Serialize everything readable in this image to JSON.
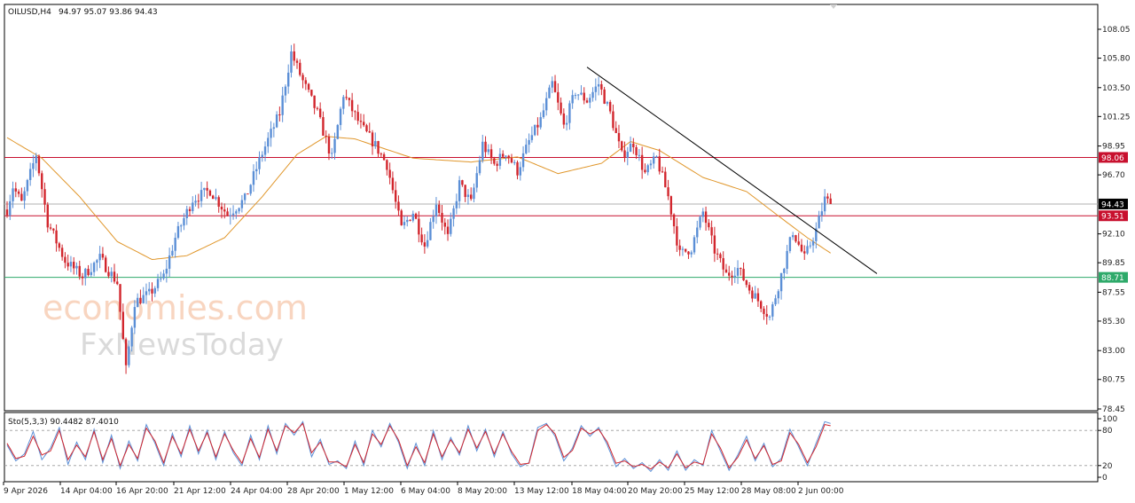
{
  "header": {
    "symbol": "OILUSD,H4",
    "ohlc": "94.97 95.07 93.86 94.43"
  },
  "watermark": {
    "line1": "economies.com",
    "line2": "FxNewsToday"
  },
  "colors": {
    "bull": "#5b8fd6",
    "bear": "#d2262d",
    "ma": "#e0962a",
    "resistance": "#c8102e",
    "support": "#2eaa6a",
    "current": "#b0b0b0",
    "stoch_main": "#5b8fd6",
    "stoch_signal": "#d2262d"
  },
  "chart_data": [
    {
      "type": "candlestick",
      "symbol": "OILUSD",
      "timeframe": "H4",
      "y_ticks": [
        "108.05",
        "105.80",
        "103.50",
        "101.25",
        "98.95",
        "96.70",
        "92.10",
        "89.85",
        "87.55",
        "85.30",
        "83.00",
        "80.75",
        "78.45"
      ],
      "ylim": [
        78.45,
        109.0
      ],
      "x_ticks": [
        "9 Apr 2026",
        "14 Apr 04:00",
        "16 Apr 20:00",
        "21 Apr 12:00",
        "24 Apr 04:00",
        "28 Apr 20:00",
        "1 May 12:00",
        "6 May 04:00",
        "8 May 20:00",
        "13 May 12:00",
        "18 May 04:00",
        "20 May 20:00",
        "25 May 12:00",
        "28 May 08:00",
        "2 Jun 00:00"
      ],
      "anchors": [
        [
          0,
          94.0
        ],
        [
          2,
          95.8
        ],
        [
          5,
          94.5
        ],
        [
          10,
          98.3
        ],
        [
          14,
          93.0
        ],
        [
          20,
          90.0
        ],
        [
          26,
          88.8
        ],
        [
          32,
          90.2
        ],
        [
          38,
          88.3
        ],
        [
          41,
          81.5
        ],
        [
          44,
          86.8
        ],
        [
          49,
          87.4
        ],
        [
          54,
          88.8
        ],
        [
          58,
          91.8
        ],
        [
          64,
          94.8
        ],
        [
          70,
          95.5
        ],
        [
          76,
          93.6
        ],
        [
          82,
          94.8
        ],
        [
          88,
          98.4
        ],
        [
          94,
          101.5
        ],
        [
          98,
          106.2
        ],
        [
          102,
          104.0
        ],
        [
          107,
          101.5
        ],
        [
          112,
          98.0
        ],
        [
          116,
          103.0
        ],
        [
          122,
          100.5
        ],
        [
          127,
          99.0
        ],
        [
          131,
          97.5
        ],
        [
          136,
          92.5
        ],
        [
          140,
          93.8
        ],
        [
          144,
          91.2
        ],
        [
          148,
          94.6
        ],
        [
          152,
          91.8
        ],
        [
          156,
          96.0
        ],
        [
          160,
          94.5
        ],
        [
          164,
          99.1
        ],
        [
          168,
          97.5
        ],
        [
          172,
          98.5
        ],
        [
          176,
          97.0
        ],
        [
          180,
          99.3
        ],
        [
          184,
          101.0
        ],
        [
          188,
          103.8
        ],
        [
          192,
          100.5
        ],
        [
          196,
          103.2
        ],
        [
          200,
          102.5
        ],
        [
          204,
          103.8
        ],
        [
          208,
          101.5
        ],
        [
          212,
          98.2
        ],
        [
          216,
          99.2
        ],
        [
          220,
          96.8
        ],
        [
          224,
          98.0
        ],
        [
          228,
          95.0
        ],
        [
          232,
          90.5
        ],
        [
          236,
          91.0
        ],
        [
          240,
          93.8
        ],
        [
          244,
          90.8
        ],
        [
          248,
          88.9
        ],
        [
          252,
          89.4
        ],
        [
          256,
          87.8
        ],
        [
          260,
          86.6
        ],
        [
          263,
          85.6
        ],
        [
          267,
          88.9
        ],
        [
          271,
          92.3
        ],
        [
          275,
          90.2
        ],
        [
          279,
          92.4
        ],
        [
          282,
          94.8
        ],
        [
          284,
          94.43
        ]
      ],
      "ma_anchors": [
        [
          0,
          99.6
        ],
        [
          12,
          98.0
        ],
        [
          25,
          95.0
        ],
        [
          38,
          91.5
        ],
        [
          50,
          90.1
        ],
        [
          62,
          90.4
        ],
        [
          75,
          91.8
        ],
        [
          88,
          95.0
        ],
        [
          100,
          98.3
        ],
        [
          110,
          99.7
        ],
        [
          120,
          99.5
        ],
        [
          140,
          98.0
        ],
        [
          160,
          97.7
        ],
        [
          176,
          98.1
        ],
        [
          190,
          96.8
        ],
        [
          205,
          97.6
        ],
        [
          215,
          99.3
        ],
        [
          225,
          98.6
        ],
        [
          240,
          96.5
        ],
        [
          255,
          95.4
        ],
        [
          266,
          93.5
        ],
        [
          276,
          91.8
        ],
        [
          284,
          90.6
        ]
      ],
      "levels": [
        {
          "label": "98.06",
          "value": 98.06,
          "kind": "resistance"
        },
        {
          "label": "93.51",
          "value": 93.51,
          "kind": "resistance"
        },
        {
          "label": "88.71",
          "value": 88.71,
          "kind": "support"
        },
        {
          "label": "94.43",
          "value": 94.43,
          "kind": "current"
        }
      ],
      "trendline": {
        "from": [
          200,
          105.1
        ],
        "to": [
          300,
          89.0
        ]
      }
    },
    {
      "type": "line",
      "indicator": "Sto(5,3,3)",
      "label": "Sto(5,3,3) 90.4482 87.4010",
      "y_ticks": [
        "100",
        "80",
        "20",
        "0"
      ],
      "ylim": [
        0,
        100
      ],
      "levels": [
        80,
        20
      ],
      "series": [
        {
          "key": "main",
          "anchors": [
            [
              0,
              55
            ],
            [
              3,
              28
            ],
            [
              6,
              40
            ],
            [
              9,
              78
            ],
            [
              12,
              30
            ],
            [
              15,
              50
            ],
            [
              18,
              85
            ],
            [
              21,
              22
            ],
            [
              24,
              60
            ],
            [
              27,
              30
            ],
            [
              30,
              82
            ],
            [
              33,
              25
            ],
            [
              36,
              72
            ],
            [
              39,
              15
            ],
            [
              42,
              62
            ],
            [
              45,
              28
            ],
            [
              48,
              90
            ],
            [
              51,
              58
            ],
            [
              54,
              20
            ],
            [
              57,
              75
            ],
            [
              60,
              35
            ],
            [
              63,
              88
            ],
            [
              66,
              40
            ],
            [
              69,
              80
            ],
            [
              72,
              30
            ],
            [
              75,
              78
            ],
            [
              78,
              42
            ],
            [
              81,
              20
            ],
            [
              84,
              72
            ],
            [
              87,
              30
            ],
            [
              90,
              88
            ],
            [
              93,
              40
            ],
            [
              96,
              92
            ],
            [
              99,
              72
            ],
            [
              102,
              95
            ],
            [
              105,
              35
            ],
            [
              108,
              65
            ],
            [
              111,
              22
            ],
            [
              114,
              28
            ],
            [
              117,
              15
            ],
            [
              120,
              62
            ],
            [
              123,
              20
            ],
            [
              126,
              80
            ],
            [
              129,
              52
            ],
            [
              132,
              92
            ],
            [
              135,
              60
            ],
            [
              138,
              15
            ],
            [
              141,
              58
            ],
            [
              144,
              20
            ],
            [
              147,
              80
            ],
            [
              150,
              30
            ],
            [
              153,
              68
            ],
            [
              156,
              38
            ],
            [
              159,
              88
            ],
            [
              162,
              45
            ],
            [
              165,
              82
            ],
            [
              168,
              35
            ],
            [
              171,
              78
            ],
            [
              174,
              40
            ],
            [
              177,
              18
            ],
            [
              180,
              25
            ],
            [
              183,
              85
            ],
            [
              186,
              92
            ],
            [
              189,
              70
            ],
            [
              192,
              28
            ],
            [
              195,
              50
            ],
            [
              198,
              88
            ],
            [
              201,
              70
            ],
            [
              204,
              85
            ],
            [
              207,
              55
            ],
            [
              210,
              18
            ],
            [
              213,
              32
            ],
            [
              216,
              15
            ],
            [
              219,
              25
            ],
            [
              222,
              10
            ],
            [
              225,
              30
            ],
            [
              228,
              12
            ],
            [
              231,
              45
            ],
            [
              234,
              12
            ],
            [
              237,
              30
            ],
            [
              240,
              20
            ],
            [
              243,
              80
            ],
            [
              246,
              45
            ],
            [
              249,
              12
            ],
            [
              252,
              38
            ],
            [
              255,
              70
            ],
            [
              258,
              28
            ],
            [
              261,
              58
            ],
            [
              264,
              18
            ],
            [
              267,
              32
            ],
            [
              270,
              82
            ],
            [
              273,
              52
            ],
            [
              276,
              20
            ],
            [
              279,
              58
            ],
            [
              282,
              95
            ],
            [
              284,
              92
            ]
          ]
        },
        {
          "key": "signal",
          "anchors": [
            [
              0,
              58
            ],
            [
              3,
              32
            ],
            [
              6,
              36
            ],
            [
              9,
              70
            ],
            [
              12,
              38
            ],
            [
              15,
              45
            ],
            [
              18,
              80
            ],
            [
              21,
              30
            ],
            [
              24,
              55
            ],
            [
              27,
              35
            ],
            [
              30,
              78
            ],
            [
              33,
              30
            ],
            [
              36,
              66
            ],
            [
              39,
              20
            ],
            [
              42,
              56
            ],
            [
              45,
              32
            ],
            [
              48,
              84
            ],
            [
              51,
              62
            ],
            [
              54,
              25
            ],
            [
              57,
              70
            ],
            [
              60,
              40
            ],
            [
              63,
              82
            ],
            [
              66,
              45
            ],
            [
              69,
              76
            ],
            [
              72,
              35
            ],
            [
              75,
              74
            ],
            [
              78,
              46
            ],
            [
              81,
              24
            ],
            [
              84,
              66
            ],
            [
              87,
              34
            ],
            [
              90,
              82
            ],
            [
              93,
              45
            ],
            [
              96,
              88
            ],
            [
              99,
              76
            ],
            [
              102,
              92
            ],
            [
              105,
              42
            ],
            [
              108,
              60
            ],
            [
              111,
              26
            ],
            [
              114,
              26
            ],
            [
              117,
              18
            ],
            [
              120,
              56
            ],
            [
              123,
              25
            ],
            [
              126,
              74
            ],
            [
              129,
              56
            ],
            [
              132,
              88
            ],
            [
              135,
              64
            ],
            [
              138,
              20
            ],
            [
              141,
              52
            ],
            [
              144,
              25
            ],
            [
              147,
              74
            ],
            [
              150,
              35
            ],
            [
              153,
              64
            ],
            [
              156,
              42
            ],
            [
              159,
              82
            ],
            [
              162,
              50
            ],
            [
              165,
              78
            ],
            [
              168,
              40
            ],
            [
              171,
              74
            ],
            [
              174,
              44
            ],
            [
              177,
              22
            ],
            [
              180,
              24
            ],
            [
              183,
              80
            ],
            [
              186,
              90
            ],
            [
              189,
              74
            ],
            [
              192,
              34
            ],
            [
              195,
              46
            ],
            [
              198,
              84
            ],
            [
              201,
              74
            ],
            [
              204,
              82
            ],
            [
              207,
              60
            ],
            [
              210,
              24
            ],
            [
              213,
              28
            ],
            [
              216,
              18
            ],
            [
              219,
              22
            ],
            [
              222,
              14
            ],
            [
              225,
              26
            ],
            [
              228,
              16
            ],
            [
              231,
              40
            ],
            [
              234,
              16
            ],
            [
              237,
              26
            ],
            [
              240,
              22
            ],
            [
              243,
              74
            ],
            [
              246,
              50
            ],
            [
              249,
              16
            ],
            [
              252,
              34
            ],
            [
              255,
              64
            ],
            [
              258,
              32
            ],
            [
              261,
              54
            ],
            [
              264,
              22
            ],
            [
              267,
              28
            ],
            [
              270,
              76
            ],
            [
              273,
              56
            ],
            [
              276,
              25
            ],
            [
              279,
              52
            ],
            [
              282,
              90
            ],
            [
              284,
              88
            ]
          ]
        }
      ]
    }
  ]
}
